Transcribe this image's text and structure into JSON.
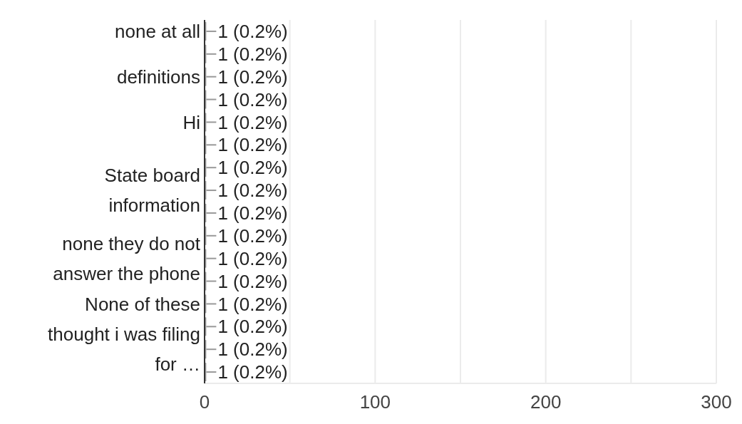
{
  "chart_data": {
    "type": "bar",
    "orientation": "horizontal",
    "categories": [
      "none at all",
      null,
      "definitions",
      null,
      "Hi",
      null,
      null,
      "State board information",
      null,
      null,
      "none they do not answer the phone",
      null,
      "None of these",
      null,
      "thought i was filing for …",
      null
    ],
    "values": [
      1,
      1,
      1,
      1,
      1,
      1,
      1,
      1,
      1,
      1,
      1,
      1,
      1,
      1,
      1,
      1
    ],
    "value_labels": [
      "1 (0.2%)",
      "1 (0.2%)",
      "1 (0.2%)",
      "1 (0.2%)",
      "1 (0.2%)",
      "1 (0.2%)",
      "1 (0.2%)",
      "1 (0.2%)",
      "1 (0.2%)",
      "1 (0.2%)",
      "1 (0.2%)",
      "1 (0.2%)",
      "1 (0.2%)",
      "1 (0.2%)",
      "1 (0.2%)",
      "1 (0.2%)"
    ],
    "color": "#9e9e9e",
    "xlim": [
      0,
      300
    ],
    "xticks": [
      0,
      {
        "value": 50,
        "label": null
      },
      100,
      {
        "value": 150,
        "label": null
      },
      200,
      {
        "value": 250,
        "label": null
      },
      300
    ],
    "grid": true
  }
}
